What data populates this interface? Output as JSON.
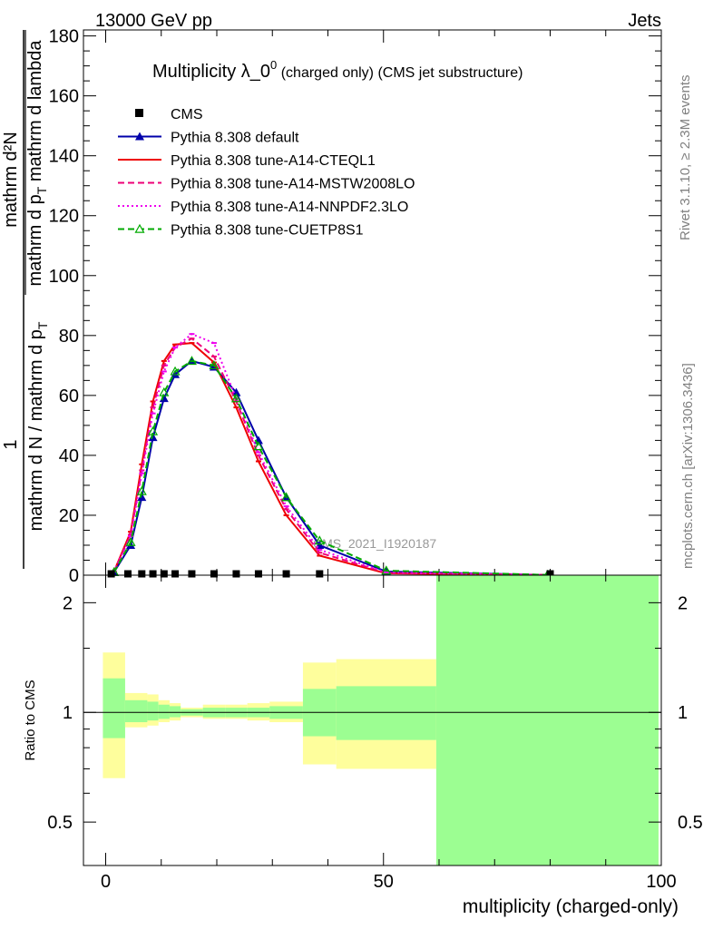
{
  "header": {
    "left": "13000 GeV pp",
    "right": "Jets"
  },
  "side_labels": {
    "rivet": "Rivet 3.1.10, ≥ 2.3M events",
    "mcplots": "mcplots.cern.ch [arXiv:1306.3436]"
  },
  "analysis_label": "CMS_2021_I1920187",
  "chart_data": [
    {
      "type": "line",
      "title": "Multiplicity λ_0⁰ (charged only) (CMS jet substructure)",
      "title_main": "Multiplicity λ_0",
      "title_sup": "0",
      "title_rest": " (charged only) (CMS jet substructure)",
      "ylabel": {
        "num_main": "1",
        "den_main": "mathrm d N / mathrm d p",
        "den_sub": "T",
        "num2": "mathrm d²N",
        "den2": "mathrm d p",
        "den2_sub": "T",
        "den2_rest": " mathrm d lambda"
      },
      "xlim": [
        -4,
        100
      ],
      "ylim": [
        0,
        182
      ],
      "yticks": [
        0,
        20,
        40,
        60,
        80,
        100,
        120,
        140,
        160,
        180
      ],
      "ytick_labels": [
        "0",
        "20",
        "40",
        "60",
        "80",
        "100",
        "120",
        "140",
        "160",
        "180"
      ],
      "legend": {
        "position": "top-left"
      },
      "cms": {
        "name": "CMS",
        "x": [
          1,
          4,
          6.5,
          8.5,
          10.5,
          12.5,
          15.5,
          19.5,
          23.5,
          27.5,
          32.5,
          38.5,
          80
        ],
        "y": [
          0.3,
          0.3,
          0.3,
          0.3,
          0.3,
          0.3,
          0.3,
          0.3,
          0.3,
          0.3,
          0.3,
          0.3,
          0.3
        ]
      },
      "series": [
        {
          "name": "Pythia 8.308 default",
          "color": "#0000aa",
          "style": "solid",
          "marker": "triangle-filled",
          "x": [
            1.5,
            4.5,
            6.5,
            8.5,
            10.5,
            12.5,
            15.5,
            19.5,
            23.5,
            27.5,
            32.5,
            38.5,
            50.5,
            79.5
          ],
          "y": [
            1,
            10,
            26,
            46,
            59,
            67,
            71.5,
            69.5,
            61,
            45,
            26,
            10,
            1.2,
            0.1
          ]
        },
        {
          "name": "Pythia 8.308 tune-A14-CTEQL1",
          "color": "#ee0000",
          "style": "solid",
          "marker": "none",
          "x": [
            1.5,
            4.5,
            6.5,
            8.5,
            10.5,
            12.5,
            15.5,
            19.5,
            23.5,
            27.5,
            32.5,
            38.5,
            50.5,
            79.5
          ],
          "y": [
            1.2,
            14.5,
            37,
            58,
            71.5,
            77,
            77.5,
            71,
            56,
            38,
            20,
            6.5,
            0.6,
            0.05
          ]
        },
        {
          "name": "Pythia 8.308 tune-A14-MSTW2008LO",
          "color": "#ee0077",
          "style": "dashed",
          "marker": "none",
          "x": [
            1.5,
            4.5,
            6.5,
            8.5,
            10.5,
            12.5,
            15.5,
            19.5,
            23.5,
            27.5,
            32.5,
            38.5,
            50.5,
            79.5
          ],
          "y": [
            1.2,
            13.5,
            35,
            56,
            70,
            76,
            79,
            73,
            58,
            40,
            22,
            7.5,
            0.8,
            0.05
          ]
        },
        {
          "name": "Pythia 8.308 tune-A14-NNPDF2.3LO",
          "color": "#ee00ee",
          "style": "dotted",
          "marker": "none",
          "x": [
            1.5,
            4.5,
            6.5,
            8.5,
            10.5,
            12.5,
            15.5,
            19.5,
            23.5,
            27.5,
            32.5,
            38.5,
            50.5,
            79.5
          ],
          "y": [
            1.2,
            13,
            34,
            54,
            68,
            76,
            80.5,
            77.5,
            59,
            41,
            23,
            8.5,
            0.9,
            0.05
          ]
        },
        {
          "name": "Pythia 8.308 tune-CUETP8S1",
          "color": "#00aa00",
          "style": "dashed",
          "marker": "triangle-open",
          "x": [
            1.5,
            4.5,
            6.5,
            8.5,
            10.5,
            12.5,
            15.5,
            19.5,
            23.5,
            27.5,
            32.5,
            38.5,
            50.5,
            79.5
          ],
          "y": [
            1,
            11,
            28,
            48,
            61,
            68,
            71.5,
            70,
            59,
            43,
            26,
            11.5,
            1.5,
            0.1
          ]
        }
      ]
    },
    {
      "type": "area",
      "title": "Ratio to CMS",
      "ylabel": "Ratio to CMS",
      "xlabel": "multiplicity (charged-only)",
      "xlim": [
        -4,
        100
      ],
      "ylim": [
        0.38,
        2.38
      ],
      "scale": "log",
      "xticks": [
        0,
        50,
        100
      ],
      "xtick_labels": [
        "0",
        "50",
        "100"
      ],
      "yticks": [
        0.5,
        1,
        2
      ],
      "ytick_labels": [
        "0.5",
        "1",
        "2"
      ],
      "bins": [
        {
          "x0": -0.5,
          "x1": 3.5,
          "stat": [
            0.85,
            1.24
          ],
          "tot": [
            0.66,
            1.46
          ]
        },
        {
          "x0": 3.5,
          "x1": 7.5,
          "stat": [
            0.94,
            1.08
          ],
          "tot": [
            0.91,
            1.13
          ]
        },
        {
          "x0": 7.5,
          "x1": 9.5,
          "stat": [
            0.95,
            1.07
          ],
          "tot": [
            0.92,
            1.12
          ]
        },
        {
          "x0": 9.5,
          "x1": 11.5,
          "stat": [
            0.96,
            1.05
          ],
          "tot": [
            0.94,
            1.08
          ]
        },
        {
          "x0": 11.5,
          "x1": 13.5,
          "stat": [
            0.97,
            1.04
          ],
          "tot": [
            0.95,
            1.06
          ]
        },
        {
          "x0": 13.5,
          "x1": 17.5,
          "stat": [
            0.98,
            1.02
          ],
          "tot": [
            0.97,
            1.03
          ]
        },
        {
          "x0": 17.5,
          "x1": 21.5,
          "stat": [
            0.97,
            1.03
          ],
          "tot": [
            0.96,
            1.05
          ]
        },
        {
          "x0": 21.5,
          "x1": 25.5,
          "stat": [
            0.97,
            1.03
          ],
          "tot": [
            0.96,
            1.05
          ]
        },
        {
          "x0": 25.5,
          "x1": 29.5,
          "stat": [
            0.97,
            1.03
          ],
          "tot": [
            0.95,
            1.06
          ]
        },
        {
          "x0": 29.5,
          "x1": 35.5,
          "stat": [
            0.96,
            1.04
          ],
          "tot": [
            0.94,
            1.07
          ]
        },
        {
          "x0": 35.5,
          "x1": 41.5,
          "stat": [
            0.86,
            1.16
          ],
          "tot": [
            0.72,
            1.37
          ]
        },
        {
          "x0": 41.5,
          "x1": 59.5,
          "stat": [
            0.84,
            1.18
          ],
          "tot": [
            0.7,
            1.4
          ]
        },
        {
          "x0": 59.5,
          "x1": 99.5,
          "stat": [
            0.38,
            2.38
          ],
          "tot": [
            0.38,
            2.38
          ]
        }
      ],
      "stat_color": "#9cfe92",
      "tot_color": "#fefe9c"
    }
  ]
}
